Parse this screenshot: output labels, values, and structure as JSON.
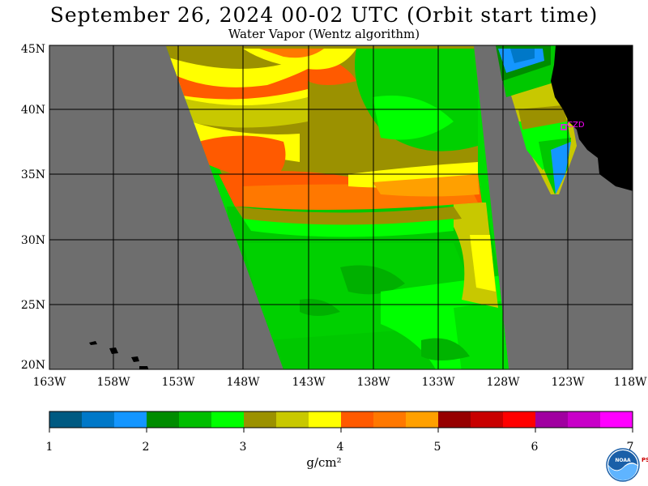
{
  "title": "September 26, 2024   00-02 UTC  (Orbit start time)",
  "subtitle": "Water Vapor (Wentz algorithm)",
  "lat_labels": [
    "45N",
    "40N",
    "35N",
    "30N",
    "25N",
    "20N"
  ],
  "lon_labels": [
    "163W",
    "158W",
    "153W",
    "148W",
    "143W",
    "138W",
    "133W",
    "128W",
    "123W",
    "118W"
  ],
  "station_label": "CZD",
  "colorbar": {
    "ticks": [
      "1",
      "2",
      "3",
      "4",
      "5",
      "6",
      "7"
    ],
    "units": "g/cm²",
    "colors": [
      "#005a82",
      "#0078c8",
      "#1496ff",
      "#008c00",
      "#00be00",
      "#00ff00",
      "#9b9100",
      "#c8c800",
      "#ffff00",
      "#ff5a00",
      "#ff7800",
      "#ffa000",
      "#960000",
      "#c80000",
      "#ff0000",
      "#a000a0",
      "#c800c8",
      "#ff00ff"
    ]
  },
  "colors": {
    "ocean": "#6e6e6e",
    "land": "#000000",
    "grid": "#000000",
    "station": "#ff00ff"
  },
  "logo_text": "NOAA",
  "psl_text": "PSL"
}
